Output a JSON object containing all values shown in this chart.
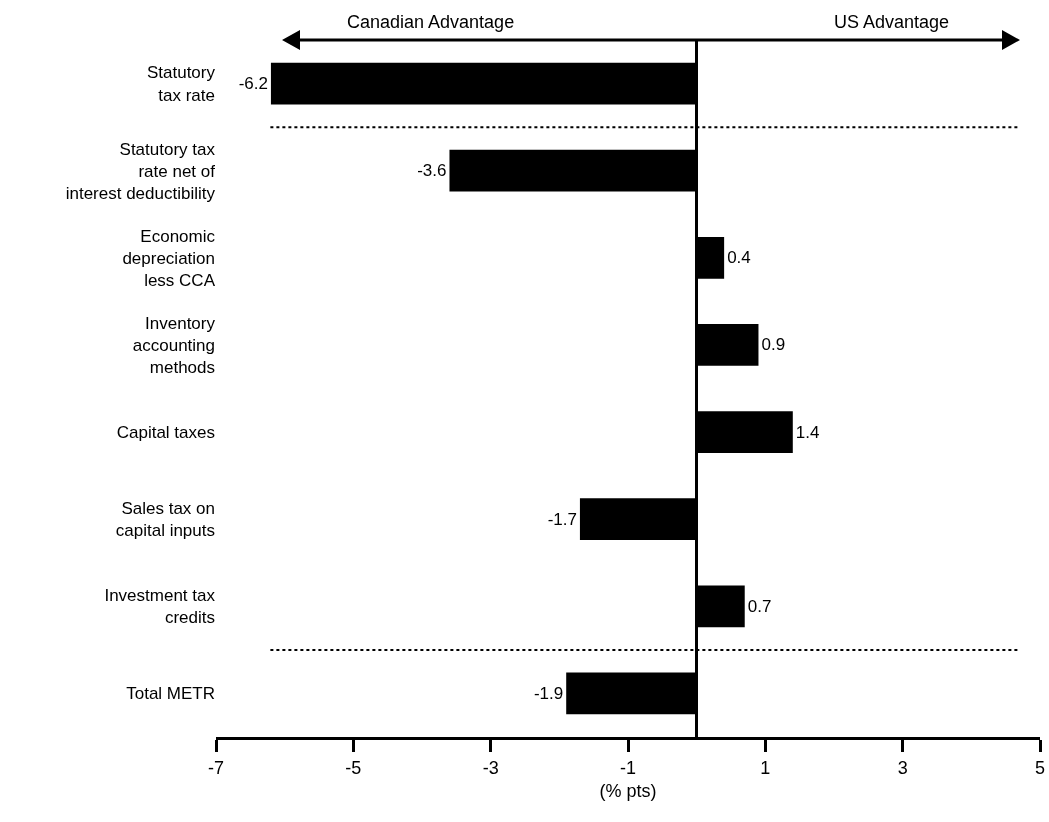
{
  "chart_data": {
    "type": "bar",
    "orientation": "horizontal",
    "categories": [
      "Statutory\ntax rate",
      "Statutory tax\nrate net of\ninterest deductibility",
      "Economic\ndepreciation\nless CCA",
      "Inventory\naccounting\nmethods",
      "Capital taxes",
      "Sales tax on\ncapital inputs",
      "Investment tax\ncredits",
      "Total METR"
    ],
    "values": [
      -6.2,
      -3.6,
      0.4,
      0.9,
      1.4,
      -1.7,
      0.7,
      -1.9
    ],
    "color": "#000000",
    "data_labels": true,
    "xlabel": "(% pts)",
    "xlim": [
      -7,
      5
    ],
    "xticks": [
      -7,
      -5,
      -3,
      -1,
      1,
      3,
      5
    ],
    "grid": false,
    "annotations": [
      "Canadian Advantage",
      "US Advantage"
    ]
  }
}
